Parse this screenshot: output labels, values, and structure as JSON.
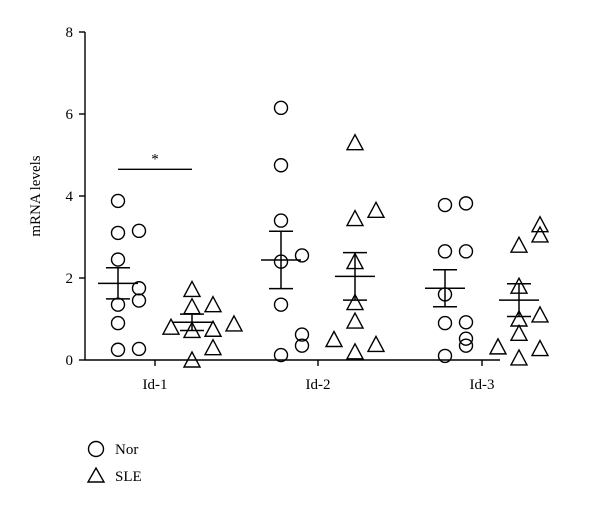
{
  "chart_data": {
    "type": "scatter",
    "ylabel": "mRNA levels",
    "ylim": [
      0,
      8
    ],
    "yticks": [
      0,
      2,
      4,
      6,
      8
    ],
    "categories": [
      "Id-1",
      "Id-2",
      "Id-3"
    ],
    "series": [
      {
        "name": "Nor",
        "marker": "circle",
        "groups": [
          {
            "category": "Id-1",
            "values": [
              0.25,
              0.27,
              0.9,
              1.35,
              1.45,
              1.75,
              2.45,
              3.1,
              3.15,
              3.88
            ],
            "mean": 1.87,
            "sem": 0.38
          },
          {
            "category": "Id-2",
            "values": [
              0.12,
              0.35,
              0.62,
              1.35,
              2.4,
              2.55,
              3.4,
              4.75,
              6.15
            ],
            "mean": 2.44,
            "sem": 0.7
          },
          {
            "category": "Id-3",
            "values": [
              0.1,
              0.35,
              0.52,
              0.9,
              0.92,
              1.6,
              2.65,
              2.65,
              3.78,
              3.82
            ],
            "mean": 1.75,
            "sem": 0.45
          }
        ]
      },
      {
        "name": "SLE",
        "marker": "triangle",
        "groups": [
          {
            "category": "Id-1",
            "values": [
              0.0,
              0.3,
              0.72,
              0.75,
              0.8,
              0.88,
              1.3,
              1.35,
              1.72
            ],
            "mean": 0.92,
            "sem": 0.2
          },
          {
            "category": "Id-2",
            "values": [
              0.2,
              0.38,
              0.5,
              0.95,
              1.4,
              2.4,
              3.45,
              3.65,
              5.3
            ],
            "mean": 2.04,
            "sem": 0.58
          },
          {
            "category": "Id-3",
            "values": [
              0.05,
              0.28,
              0.32,
              0.65,
              1.0,
              1.1,
              1.8,
              2.8,
              3.05,
              3.3
            ],
            "mean": 1.46,
            "sem": 0.4
          }
        ]
      }
    ],
    "annotations": [
      {
        "text": "*",
        "category": "Id-1",
        "y": 4.65
      }
    ],
    "legend": {
      "position": "bottom-left",
      "entries": [
        "Nor",
        "SLE"
      ]
    },
    "colors": {
      "stroke": "#000000",
      "background": "#ffffff"
    }
  }
}
